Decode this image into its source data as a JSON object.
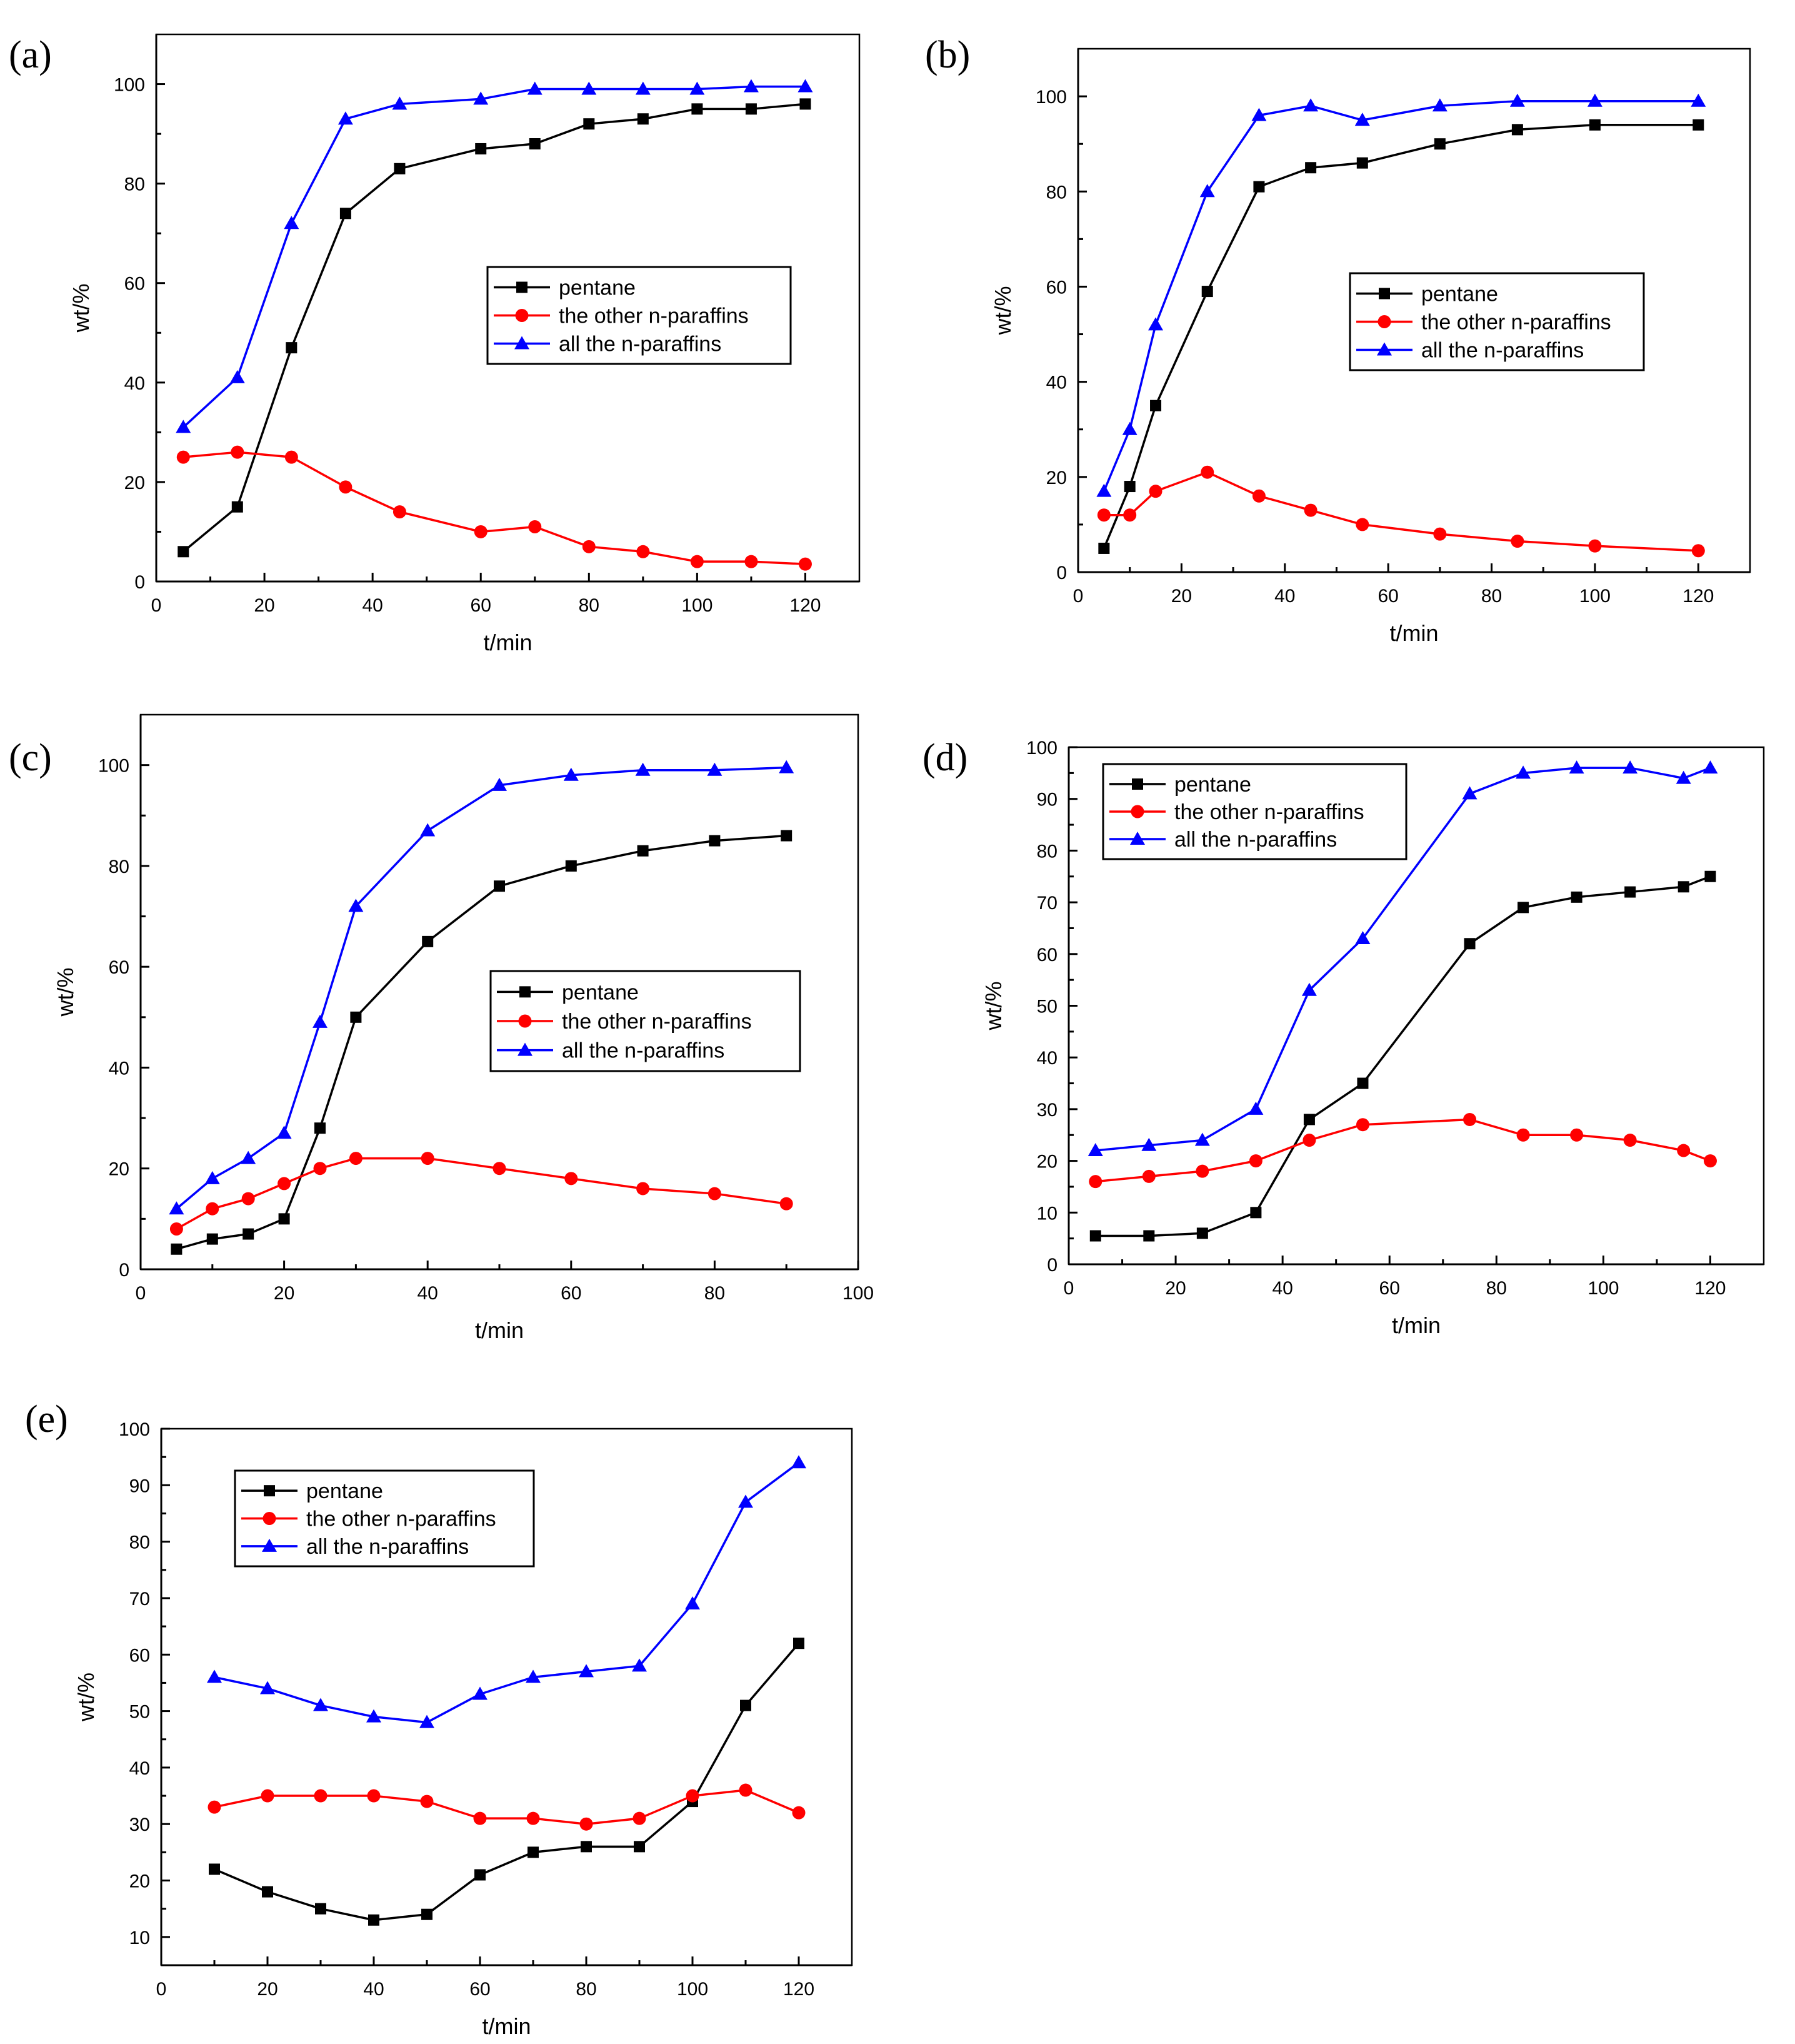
{
  "chart_data": [
    {
      "panel": "(a)",
      "type": "line",
      "xlabel": "t/min",
      "ylabel": "wt/%",
      "xlim": [
        0,
        130
      ],
      "ylim": [
        0,
        110
      ],
      "xticks": [
        "0",
        "20",
        "40",
        "60",
        "80",
        "100",
        "120"
      ],
      "yticks": [
        "0",
        "20",
        "40",
        "60",
        "80",
        "100"
      ],
      "legend": "center-right",
      "series": [
        {
          "name": "pentane",
          "color": "#000000",
          "marker": "square",
          "x": [
            5,
            15,
            25,
            35,
            45,
            60,
            70,
            80,
            90,
            100,
            110,
            120
          ],
          "y": [
            6,
            15,
            47,
            74,
            83,
            87,
            88,
            92,
            93,
            95,
            95,
            96
          ]
        },
        {
          "name": "the other n-paraffins",
          "color": "#ff0000",
          "marker": "circle",
          "x": [
            5,
            15,
            25,
            35,
            45,
            60,
            70,
            80,
            90,
            100,
            110,
            120
          ],
          "y": [
            25,
            26,
            25,
            19,
            14,
            10,
            11,
            7,
            6,
            4,
            4,
            3.5
          ]
        },
        {
          "name": "all the n-paraffins",
          "color": "#0000ff",
          "marker": "triangle",
          "x": [
            5,
            15,
            25,
            35,
            45,
            60,
            70,
            80,
            90,
            100,
            110,
            120
          ],
          "y": [
            31,
            41,
            72,
            93,
            96,
            97,
            99,
            99,
            99,
            99,
            99.5,
            99.5
          ]
        }
      ]
    },
    {
      "panel": "(b)",
      "type": "line",
      "xlabel": "t/min",
      "ylabel": "wt/%",
      "xlim": [
        0,
        130
      ],
      "ylim": [
        0,
        110
      ],
      "xticks": [
        "0",
        "20",
        "40",
        "60",
        "80",
        "100",
        "120"
      ],
      "yticks": [
        "0",
        "20",
        "40",
        "60",
        "80",
        "100"
      ],
      "legend": "center-right",
      "series": [
        {
          "name": "pentane",
          "color": "#000000",
          "marker": "square",
          "x": [
            5,
            10,
            15,
            25,
            35,
            45,
            55,
            70,
            85,
            100,
            120
          ],
          "y": [
            5,
            18,
            35,
            59,
            81,
            85,
            86,
            90,
            93,
            94,
            94
          ]
        },
        {
          "name": "the other n-paraffins",
          "color": "#ff0000",
          "marker": "circle",
          "x": [
            5,
            10,
            15,
            25,
            35,
            45,
            55,
            70,
            85,
            100,
            120
          ],
          "y": [
            12,
            12,
            17,
            21,
            16,
            13,
            10,
            8,
            6.5,
            5.5,
            4.5
          ]
        },
        {
          "name": "all the n-paraffins",
          "color": "#0000ff",
          "marker": "triangle",
          "x": [
            5,
            10,
            15,
            25,
            35,
            45,
            55,
            70,
            85,
            100,
            120
          ],
          "y": [
            17,
            30,
            52,
            80,
            96,
            98,
            95,
            98,
            99,
            99,
            99
          ]
        }
      ]
    },
    {
      "panel": "(c)",
      "type": "line",
      "xlabel": "t/min",
      "ylabel": "wt/%",
      "xlim": [
        0,
        100
      ],
      "ylim": [
        0,
        110
      ],
      "xticks": [
        "0",
        "20",
        "40",
        "60",
        "80",
        "100"
      ],
      "yticks": [
        "0",
        "20",
        "40",
        "60",
        "80",
        "100"
      ],
      "legend": "center-right",
      "series": [
        {
          "name": "pentane",
          "color": "#000000",
          "marker": "square",
          "x": [
            5,
            10,
            15,
            20,
            25,
            30,
            40,
            50,
            60,
            70,
            80,
            90
          ],
          "y": [
            4,
            6,
            7,
            10,
            28,
            50,
            65,
            76,
            80,
            83,
            85,
            86
          ]
        },
        {
          "name": "the other n-paraffins",
          "color": "#ff0000",
          "marker": "circle",
          "x": [
            5,
            10,
            15,
            20,
            25,
            30,
            40,
            50,
            60,
            70,
            80,
            90
          ],
          "y": [
            8,
            12,
            14,
            17,
            20,
            22,
            22,
            20,
            18,
            16,
            15,
            13
          ]
        },
        {
          "name": "all the n-paraffins",
          "color": "#0000ff",
          "marker": "triangle",
          "x": [
            5,
            10,
            15,
            20,
            25,
            30,
            40,
            50,
            60,
            70,
            80,
            90
          ],
          "y": [
            12,
            18,
            22,
            27,
            49,
            72,
            87,
            96,
            98,
            99,
            99,
            99.5
          ]
        }
      ]
    },
    {
      "panel": "(d)",
      "type": "line",
      "xlabel": "t/min",
      "ylabel": "wt/%",
      "xlim": [
        0,
        130
      ],
      "ylim": [
        0,
        100
      ],
      "xticks": [
        "0",
        "20",
        "40",
        "60",
        "80",
        "100",
        "120"
      ],
      "yticks": [
        "0",
        "10",
        "20",
        "30",
        "40",
        "50",
        "60",
        "70",
        "80",
        "90",
        "100"
      ],
      "legend": "top-left",
      "series": [
        {
          "name": "pentane",
          "color": "#000000",
          "marker": "square",
          "x": [
            5,
            15,
            25,
            35,
            45,
            55,
            75,
            85,
            95,
            105,
            115,
            120
          ],
          "y": [
            5.5,
            5.5,
            6,
            10,
            28,
            35,
            62,
            69,
            71,
            72,
            73,
            75
          ]
        },
        {
          "name": "the other n-paraffins",
          "color": "#ff0000",
          "marker": "circle",
          "x": [
            5,
            15,
            25,
            35,
            45,
            55,
            75,
            85,
            95,
            105,
            115,
            120
          ],
          "y": [
            16,
            17,
            18,
            20,
            24,
            27,
            28,
            25,
            25,
            24,
            22,
            20
          ]
        },
        {
          "name": "all the n-paraffins",
          "color": "#0000ff",
          "marker": "triangle",
          "x": [
            5,
            15,
            25,
            35,
            45,
            55,
            75,
            85,
            95,
            105,
            115,
            120
          ],
          "y": [
            22,
            23,
            24,
            30,
            53,
            63,
            91,
            95,
            96,
            96,
            94,
            96
          ]
        }
      ]
    },
    {
      "panel": "(e)",
      "type": "line",
      "xlabel": "t/min",
      "ylabel": "wt/%",
      "xlim": [
        0,
        130
      ],
      "ylim": [
        5,
        100
      ],
      "xticks": [
        "0",
        "20",
        "40",
        "60",
        "80",
        "100",
        "120"
      ],
      "yticks": [
        "10",
        "20",
        "30",
        "40",
        "50",
        "60",
        "70",
        "80",
        "90",
        "100"
      ],
      "legend": "top-left",
      "series": [
        {
          "name": "pentane",
          "color": "#000000",
          "marker": "square",
          "x": [
            10,
            20,
            30,
            40,
            50,
            60,
            70,
            80,
            90,
            100,
            110,
            120
          ],
          "y": [
            22,
            18,
            15,
            13,
            14,
            21,
            25,
            26,
            26,
            34,
            51,
            62
          ]
        },
        {
          "name": "the other n-paraffins",
          "color": "#ff0000",
          "marker": "circle",
          "x": [
            10,
            20,
            30,
            40,
            50,
            60,
            70,
            80,
            90,
            100,
            110,
            120
          ],
          "y": [
            33,
            35,
            35,
            35,
            34,
            31,
            31,
            30,
            31,
            35,
            36,
            32
          ]
        },
        {
          "name": "all the n-paraffins",
          "color": "#0000ff",
          "marker": "triangle",
          "x": [
            10,
            20,
            30,
            40,
            50,
            60,
            70,
            80,
            90,
            100,
            110,
            120
          ],
          "y": [
            56,
            54,
            51,
            49,
            48,
            53,
            56,
            57,
            58,
            69,
            87,
            94
          ]
        }
      ]
    }
  ]
}
